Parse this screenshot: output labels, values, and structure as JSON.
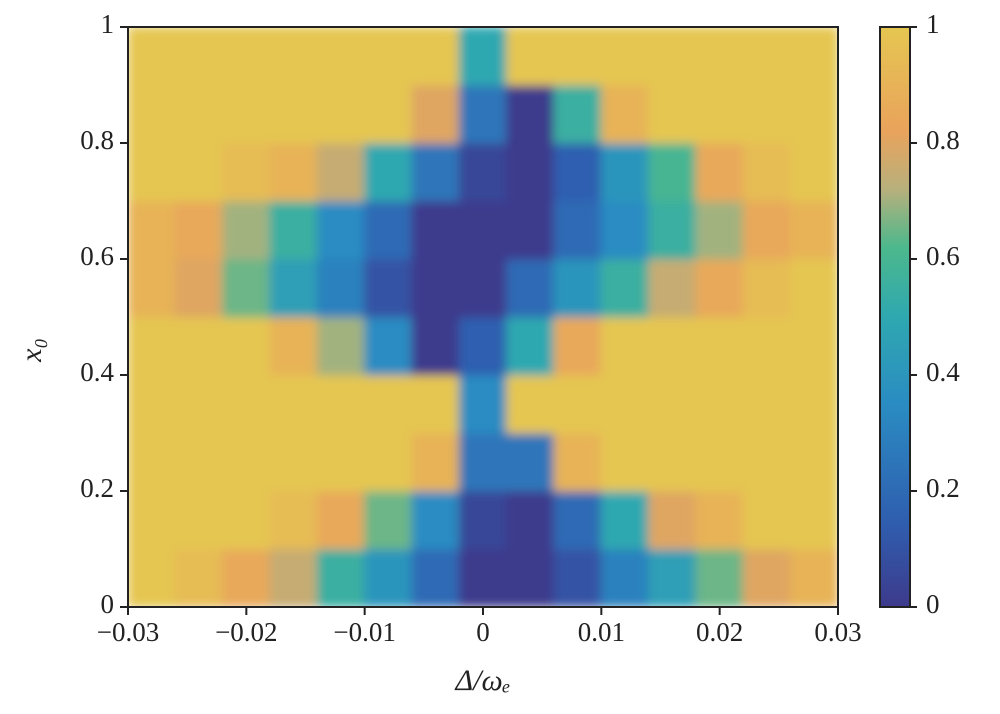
{
  "chart_data": {
    "type": "heatmap",
    "xlabel": "Δ/ωₑ",
    "ylabel": "x₀",
    "xlim": [
      -0.03,
      0.03
    ],
    "ylim": [
      0,
      1
    ],
    "xticks": [
      {
        "value": -0.03,
        "label": "−0.03"
      },
      {
        "value": -0.02,
        "label": "−0.02"
      },
      {
        "value": -0.01,
        "label": "−0.01"
      },
      0,
      0.01,
      0.02,
      0.03
    ],
    "yticks": [
      0,
      0.2,
      0.4,
      0.6,
      0.8,
      1
    ],
    "x": [
      -0.028,
      -0.024,
      -0.02,
      -0.016,
      -0.012,
      -0.008,
      -0.004,
      0,
      0.004,
      0.008,
      0.012,
      0.016,
      0.02,
      0.024,
      0.028
    ],
    "y": [
      0.05,
      0.15,
      0.25,
      0.35,
      0.45,
      0.55,
      0.65,
      0.75,
      0.85,
      0.95
    ],
    "z": [
      [
        1,
        0.95,
        0.85,
        0.75,
        0.55,
        0.4,
        0.2,
        0,
        0,
        0.1,
        0.3,
        0.45,
        0.65,
        0.8,
        0.9
      ],
      [
        1,
        1,
        1,
        0.95,
        0.85,
        0.65,
        0.35,
        0.05,
        0,
        0.2,
        0.5,
        0.8,
        0.9,
        1,
        1
      ],
      [
        1,
        1,
        1,
        1,
        1,
        1,
        0.9,
        0.25,
        0.25,
        0.9,
        1,
        1,
        1,
        1,
        1
      ],
      [
        1,
        1,
        1,
        1,
        1,
        1,
        1,
        0.35,
        1,
        1,
        1,
        1,
        1,
        1,
        1
      ],
      [
        1,
        1,
        1,
        0.9,
        0.7,
        0.35,
        0,
        0.15,
        0.5,
        0.85,
        1,
        1,
        1,
        1,
        1
      ],
      [
        0.9,
        0.8,
        0.65,
        0.45,
        0.3,
        0.1,
        0,
        0,
        0.2,
        0.4,
        0.55,
        0.75,
        0.85,
        0.95,
        1
      ],
      [
        0.9,
        0.85,
        0.7,
        0.55,
        0.35,
        0.2,
        0,
        0,
        0,
        0.2,
        0.35,
        0.55,
        0.7,
        0.85,
        0.9
      ],
      [
        1,
        1,
        0.95,
        0.9,
        0.75,
        0.5,
        0.25,
        0.05,
        0,
        0.15,
        0.4,
        0.6,
        0.85,
        0.95,
        1
      ],
      [
        1,
        1,
        1,
        1,
        1,
        1,
        0.8,
        0.25,
        0,
        0.55,
        0.9,
        1,
        1,
        1,
        1
      ],
      [
        1,
        1,
        1,
        1,
        1,
        1,
        1,
        0.5,
        1,
        1,
        1,
        1,
        1,
        1,
        1
      ]
    ],
    "zlim": [
      0,
      1
    ],
    "zticks": [
      0,
      0.2,
      0.4,
      0.6,
      0.8,
      1
    ],
    "colorscale": [
      [
        0,
        "#3d3a8c"
      ],
      [
        0.15,
        "#2f5fb0"
      ],
      [
        0.35,
        "#2a8cc2"
      ],
      [
        0.5,
        "#2fa8b0"
      ],
      [
        0.62,
        "#4cb88c"
      ],
      [
        0.72,
        "#b7b07c"
      ],
      [
        0.82,
        "#e9a35c"
      ],
      [
        1,
        "#e5c651"
      ]
    ]
  }
}
